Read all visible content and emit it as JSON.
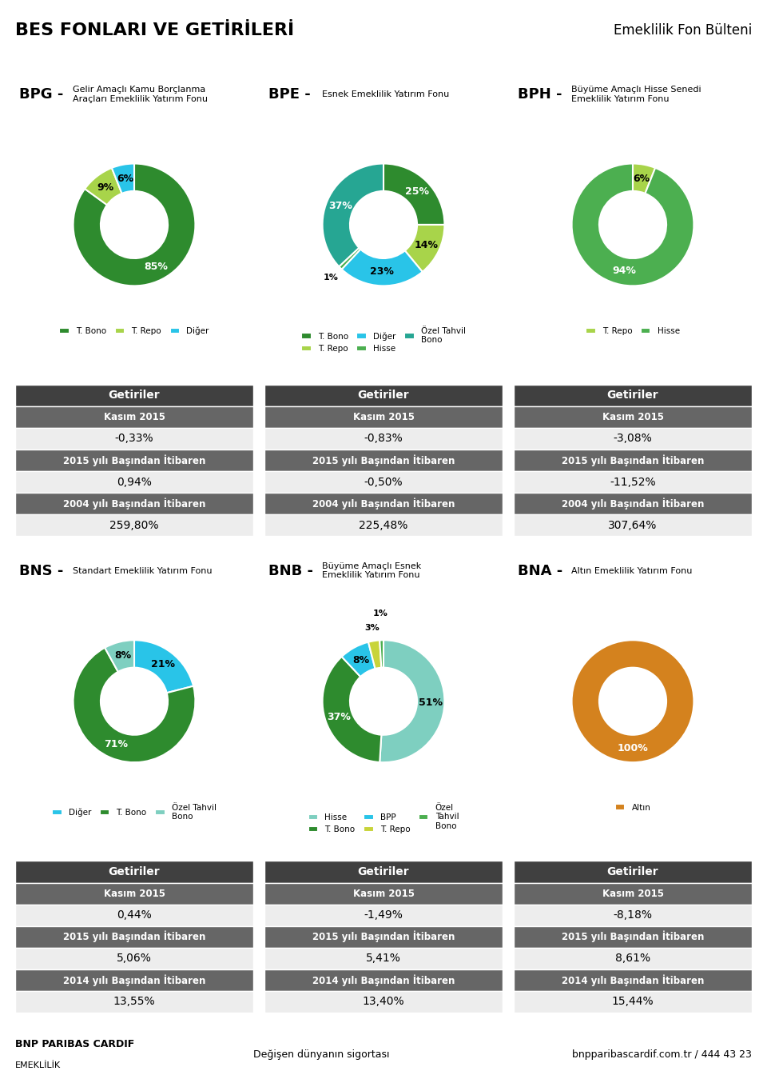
{
  "title": "BES FONLARI VE GETİRİLERİ",
  "subtitle": "Emeklilik Fon Bülteni",
  "annotations": [
    "BNP PARIBAS CARDIF",
    "EMEKLİLİK",
    "Değişen dünyanın sigortası",
    "bnpparibascardif.com.tr / 444 43 23"
  ],
  "chart_data": [
    {
      "type": "donut",
      "title": "BPG -",
      "subtitle": "Gelir Amaçlı Kamu Borçlanma\nAraçları Emeklilik Yatırım Fonu",
      "categories": [
        "T. Bono",
        "T. Repo",
        "Diğer"
      ],
      "values": [
        85,
        9,
        6
      ],
      "value_labels": [
        "85%",
        "9%",
        "6%"
      ],
      "colors": [
        "#2e8b2e",
        "#a8d44a",
        "#29c4e8"
      ],
      "data_labels": true,
      "legend": "upper center",
      "annotations": [
        "Getiriler",
        "Kasım 2015",
        "-0,33%",
        "2015 yılı Başından İtibaren",
        "0,94%",
        "2004 yılı Başından İtibaren",
        "259,80%"
      ]
    },
    {
      "type": "donut",
      "title": "BPE -",
      "subtitle": "Esnek Emeklilik Yatırım Fonu",
      "categories": [
        "T. Bono",
        "T. Repo",
        "Diğer",
        "Hisse",
        "Özel Tahvil\nBono"
      ],
      "values": [
        25,
        14,
        23,
        1,
        37
      ],
      "value_labels": [
        "25%",
        "14%",
        "23%",
        "1%",
        "37%"
      ],
      "colors": [
        "#2e8b2e",
        "#a8d44a",
        "#29c4e8",
        "#4caf50",
        "#26a693"
      ],
      "data_labels": true,
      "legend": "upper center",
      "annotations": [
        "Getiriler",
        "Kasım 2015",
        "-0,83%",
        "2015 yılı Başından İtibaren",
        "-0,50%",
        "2004 yılı Başından İtibaren",
        "225,48%"
      ]
    },
    {
      "type": "donut",
      "title": "BPH -",
      "subtitle": "Büyüme Amaçlı Hisse Senedi\nEmeklilik Yatırım Fonu",
      "categories": [
        "T. Repo",
        "Hisse"
      ],
      "values": [
        6,
        94
      ],
      "value_labels": [
        "6%",
        "94%"
      ],
      "colors": [
        "#a8d44a",
        "#4caf50"
      ],
      "data_labels": true,
      "legend": "upper center",
      "annotations": [
        "Getiriler",
        "Kasım 2015",
        "-3,08%",
        "2015 yılı Başından İtibaren",
        "-11,52%",
        "2004 yılı Başından İtibaren",
        "307,64%"
      ]
    },
    {
      "type": "donut",
      "title": "BNS -",
      "subtitle": "Standart Emeklilik Yatırım Fonu",
      "categories": [
        "Diğer",
        "T. Bono",
        "Özel Tahvil\nBono"
      ],
      "values": [
        21,
        71,
        8
      ],
      "value_labels": [
        "21%",
        "71%",
        "8%"
      ],
      "colors": [
        "#29c4e8",
        "#2e8b2e",
        "#7ecfc0"
      ],
      "data_labels": true,
      "legend": "upper center",
      "annotations": [
        "Getiriler",
        "Kasım 2015",
        "0,44%",
        "2015 yılı Başından İtibaren",
        "5,06%",
        "2014 yılı Başından İtibaren",
        "13,55%"
      ]
    },
    {
      "type": "donut",
      "title": "BNB -",
      "subtitle": "Büyüme Amaçlı Esnek\nEmeklilik Yatırım Fonu",
      "categories": [
        "Hisse",
        "T. Bono",
        "BPP",
        "T. Repo",
        "Özel\nTahvil\nBono"
      ],
      "values": [
        51,
        37,
        8,
        3,
        1
      ],
      "value_labels": [
        "51%",
        "37%",
        "8%",
        "3%",
        "1%"
      ],
      "colors": [
        "#7ecfc0",
        "#2e8b2e",
        "#29c4e8",
        "#c8d43a",
        "#4caf50"
      ],
      "data_labels": true,
      "legend": "upper center",
      "annotations": [
        "Getiriler",
        "Kasım 2015",
        "-1,49%",
        "2015 yılı Başından İtibaren",
        "5,41%",
        "2014 yılı Başından İtibaren",
        "13,40%"
      ]
    },
    {
      "type": "donut",
      "title": "BNA -",
      "subtitle": "Altın Emeklilik Yatırım Fonu",
      "categories": [
        "Altın"
      ],
      "values": [
        100
      ],
      "value_labels": [
        "100%"
      ],
      "colors": [
        "#d4821e"
      ],
      "data_labels": true,
      "legend": "upper center",
      "annotations": [
        "Getiriler",
        "Kasım 2015",
        "-8,18%",
        "2015 yılı Başından İtibaren",
        "8,61%",
        "2014 yılı Başından İtibaren",
        "15,44%"
      ]
    }
  ]
}
